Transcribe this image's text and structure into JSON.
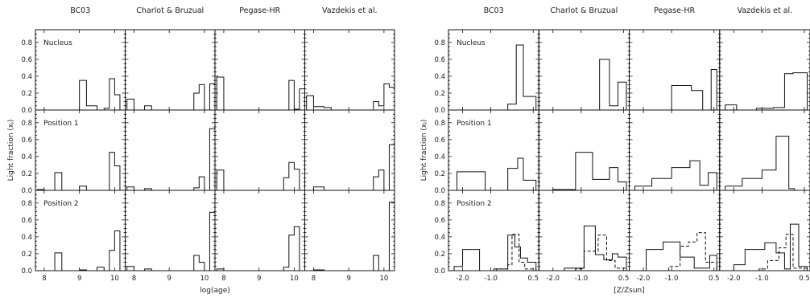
{
  "chart_data": [
    {
      "type": "bar",
      "group": "left",
      "xlabel": "log(age)",
      "ylabel": "Light fraction (xⱼ)",
      "xlim": [
        7.75,
        10.3
      ],
      "ylim": [
        0,
        0.95
      ],
      "xticks": [
        8,
        9,
        10
      ],
      "yticks": [
        0.0,
        0.2,
        0.4,
        0.6,
        0.8
      ],
      "ytick_labels": [
        "0.0",
        "0.2",
        "0.4",
        "0.6",
        "0.8"
      ],
      "columns": [
        "BC03",
        "Charlot & Bruzual",
        "Pegase-HR",
        "Vazdekis et al."
      ],
      "rows": [
        "Nucleus",
        "Position 1",
        "Position 2"
      ],
      "bin_edges": [
        7.8,
        8.0,
        8.3,
        8.5,
        8.8,
        9.0,
        9.2,
        9.5,
        9.7,
        9.85,
        10.0,
        10.15,
        10.3
      ],
      "panels": [
        [
          {
            "values": [
              0,
              0,
              0,
              0,
              0,
              0.35,
              0.05,
              0,
              0.02,
              0.37,
              0.18,
              0
            ]
          },
          {
            "values": [
              0.13,
              0,
              0.05,
              0,
              0,
              0,
              0,
              0,
              0.2,
              0.3,
              0,
              0.31
            ]
          },
          {
            "values": [
              0.39,
              0,
              0,
              0,
              0,
              0,
              0,
              0,
              0,
              0.35,
              0.01,
              0.25
            ]
          },
          {
            "values": [
              0.17,
              0.04,
              0.03,
              0,
              0,
              0,
              0,
              0,
              0.1,
              0.05,
              0.31,
              0.27
            ]
          }
        ],
        [
          {
            "values": [
              0.01,
              0,
              0.21,
              0,
              0,
              0.05,
              0,
              0,
              0,
              0.45,
              0.29,
              0
            ]
          },
          {
            "values": [
              0.04,
              0,
              0.02,
              0,
              0,
              0,
              0,
              0,
              0.03,
              0.16,
              0,
              0.73
            ]
          },
          {
            "values": [
              0.24,
              0,
              0,
              0,
              0,
              0,
              0,
              0,
              0.15,
              0.33,
              0.25,
              0
            ]
          },
          {
            "values": [
              0,
              0.04,
              0,
              0,
              0,
              0,
              0,
              0,
              0.16,
              0.24,
              0,
              0.54
            ]
          }
        ],
        [
          {
            "values": [
              0,
              0,
              0.21,
              0,
              0,
              0.01,
              0,
              0.04,
              0,
              0.24,
              0.47,
              0
            ]
          },
          {
            "values": [
              0.05,
              0,
              0.02,
              0,
              0,
              0,
              0,
              0,
              0.18,
              0.1,
              0,
              0.69
            ]
          },
          {
            "values": [
              0.02,
              0,
              0,
              0,
              0,
              0,
              0,
              0,
              0.04,
              0.42,
              0.52,
              0
            ]
          },
          {
            "values": [
              0,
              0.01,
              0,
              0,
              0,
              0,
              0,
              0,
              0.18,
              0,
              0,
              0.81
            ]
          }
        ]
      ]
    },
    {
      "type": "bar",
      "group": "right",
      "xlabel": "[Z/Zsun]",
      "ylabel": "Light fraction (xⱼ)",
      "xlim": [
        -2.5,
        0.7
      ],
      "ylim": [
        0,
        0.95
      ],
      "xticks": [
        -2.0,
        -1.0,
        0.5
      ],
      "xtick_labels": [
        "-2.0",
        "-1.0",
        "0.5"
      ],
      "yticks": [
        0.0,
        0.2,
        0.4,
        0.6,
        0.8
      ],
      "ytick_labels": [
        "0.0",
        "0.2",
        "0.4",
        "0.6",
        "0.8"
      ],
      "columns": [
        "BC03",
        "Charlot & Bruzual",
        "Pegase-HR",
        "Vazdekis et al."
      ],
      "rows": [
        "Nucleus",
        "Position 1",
        "Position 2"
      ],
      "panels": [
        [
          {
            "edges": [
              -0.4,
              -0.1,
              0.15,
              0.6
            ],
            "values": [
              0.07,
              0.77,
              0.16
            ]
          },
          {
            "edges": [
              -0.35,
              0.0,
              0.3,
              0.6
            ],
            "values": [
              0.6,
              0.05,
              0.33
            ]
          },
          {
            "edges": [
              -1.0,
              -0.3,
              0.1,
              0.4,
              0.6
            ],
            "values": [
              0.29,
              0.23,
              0.0,
              0.48
            ]
          },
          {
            "edges": [
              -2.3,
              -1.9,
              -1.2,
              -0.6,
              -0.2,
              0.1,
              0.6
            ],
            "values": [
              0.06,
              0.0,
              0.02,
              0.03,
              0.43,
              0.44
            ]
          }
        ],
        [
          {
            "edges": [
              -2.2,
              -1.2,
              -0.4,
              -0.05,
              0.15,
              0.6
            ],
            "values": [
              0.22,
              0.0,
              0.26,
              0.38,
              0.12
            ]
          },
          {
            "edges": [
              -2.0,
              -1.2,
              -0.6,
              0.0,
              0.3,
              0.6
            ],
            "values": [
              0.01,
              0.45,
              0.13,
              0.27,
              0.1
            ]
          },
          {
            "edges": [
              -2.3,
              -1.7,
              -1.0,
              -0.35,
              0.0,
              0.3,
              0.6
            ],
            "values": [
              0.05,
              0.14,
              0.27,
              0.35,
              0.06,
              0.21
            ]
          },
          {
            "edges": [
              -2.3,
              -1.7,
              -1.0,
              -0.5,
              -0.05,
              0.15,
              0.6
            ],
            "values": [
              0.05,
              0.14,
              0.24,
              0.64,
              0.02,
              0.0
            ]
          }
        ],
        [
          {
            "edges": [
              -2.3,
              -2.0,
              -1.4,
              -0.9,
              -0.4,
              -0.15,
              0.05,
              0.3,
              0.6
            ],
            "values": [
              0.05,
              0.25,
              0.0,
              0.02,
              0.42,
              0.28,
              0.15,
              0.1
            ],
            "dashed_edges": [
              -0.8,
              -0.4,
              -0.25,
              0.0,
              0.2,
              0.6
            ],
            "dashed_values": [
              0.02,
              0.07,
              0.43,
              0.1,
              0.02
            ]
          },
          {
            "edges": [
              -2.3,
              -1.6,
              -0.9,
              -0.5,
              -0.2,
              0.1,
              0.3,
              0.6
            ],
            "values": [
              0.0,
              0.03,
              0.53,
              0.19,
              0.13,
              0.2,
              0.16
            ],
            "dashed_edges": [
              -1.2,
              -0.9,
              -0.4,
              -0.1,
              0.2,
              0.6
            ],
            "dashed_values": [
              0.02,
              0.23,
              0.42,
              0.12,
              0.03
            ]
          },
          {
            "edges": [
              -2.3,
              -1.9,
              -1.3,
              -0.7,
              -0.2,
              0.1,
              0.35,
              0.6
            ],
            "values": [
              0.0,
              0.25,
              0.34,
              0.16,
              0.03,
              0.03,
              0.18
            ],
            "dashed_edges": [
              -1.1,
              -0.7,
              -0.4,
              -0.1,
              0.2,
              0.6
            ],
            "dashed_values": [
              0.05,
              0.29,
              0.34,
              0.45,
              0.1
            ]
          },
          {
            "edges": [
              -2.3,
              -2.0,
              -1.6,
              -0.9,
              -0.5,
              -0.2,
              0.0,
              0.3,
              0.6
            ],
            "values": [
              0.0,
              0.07,
              0.25,
              0.33,
              0.21,
              0.02,
              0.55,
              0.05
            ],
            "dashed_edges": [
              -1.1,
              -0.8,
              -0.4,
              -0.15,
              0.1,
              0.6
            ],
            "dashed_values": [
              0.02,
              0.12,
              0.27,
              0.43,
              0.03
            ]
          }
        ]
      ]
    }
  ]
}
